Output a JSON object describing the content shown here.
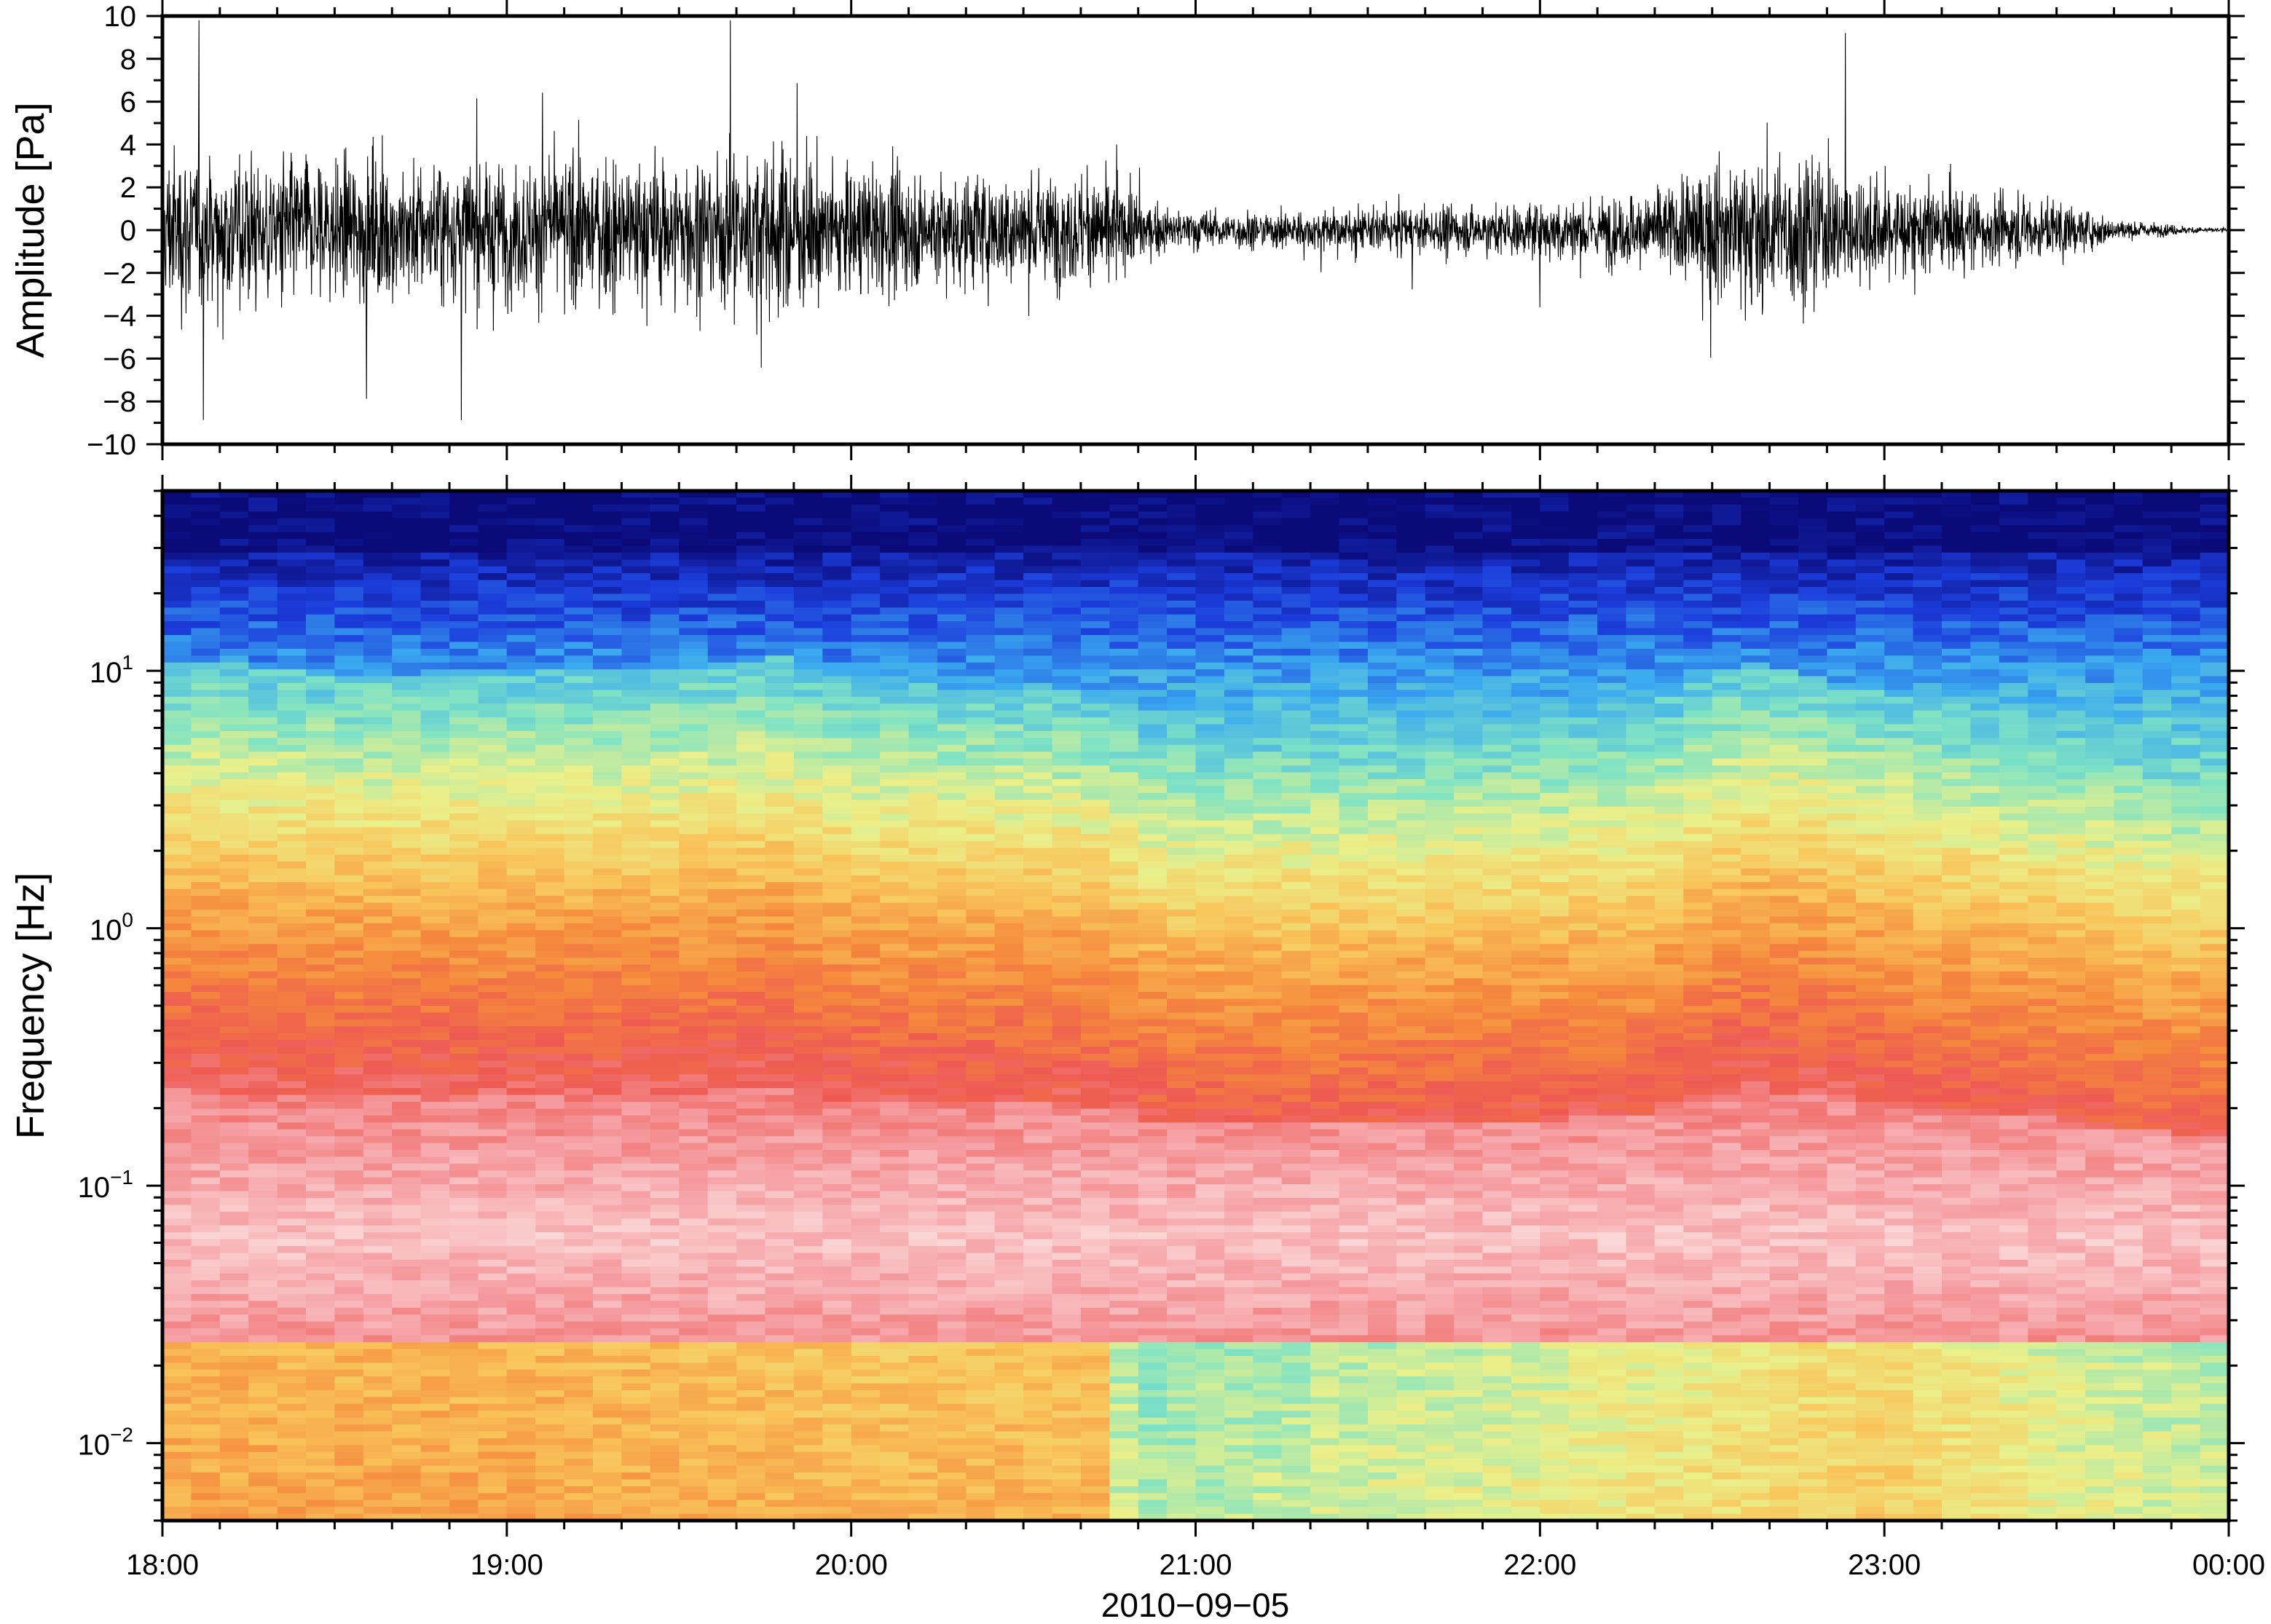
{
  "chart_data": [
    {
      "type": "line",
      "ylabel": "Amplitude [Pa]",
      "ylim": [
        -10,
        10
      ],
      "yticks": [
        10,
        8,
        6,
        4,
        2,
        0,
        -2,
        -4,
        -6,
        -8,
        -10
      ],
      "ytick_labels": [
        "10",
        "8",
        "6",
        "4",
        "2",
        "0",
        "−2",
        "−4",
        "−6",
        "−8",
        "−10"
      ],
      "x_range": [
        "18:00",
        "00:00"
      ],
      "envelope": {
        "x_hours": [
          0,
          0.5,
          1,
          1.5,
          1.8,
          2,
          2.5,
          2.75,
          2.9,
          3.2,
          3.5,
          3.8,
          4,
          4.3,
          4.6,
          4.8,
          5,
          5.3,
          5.5,
          5.7,
          5.9,
          6
        ],
        "amplitude": [
          3.5,
          3.0,
          3.0,
          3.2,
          3.6,
          2.6,
          2.4,
          2.2,
          0.9,
          0.8,
          0.9,
          1.0,
          1.2,
          1.6,
          3.4,
          3.0,
          2.2,
          1.6,
          1.2,
          0.4,
          0.15,
          0.1
        ]
      },
      "grid": false
    },
    {
      "type": "heatmap",
      "ylabel": "Frequency [Hz]",
      "yscale": "log",
      "ylim": [
        0.005,
        50
      ],
      "yticks": [
        0.01,
        0.1,
        1,
        10
      ],
      "ytick_labels": [
        {
          "base": "10",
          "exp": "−2"
        },
        {
          "base": "10",
          "exp": "−1"
        },
        {
          "base": "10",
          "exp": "0"
        },
        {
          "base": "10",
          "exp": "1"
        }
      ],
      "colormap": [
        "#0a0a78",
        "#1c3ddc",
        "#3aa9f0",
        "#7fe3c4",
        "#eaf08a",
        "#f9c45a",
        "#f5893c",
        "#ee5a52",
        "#f59a9e",
        "#fbd6d6"
      ],
      "profile_note_hours": [
        0,
        1,
        2,
        2.75,
        2.8,
        4,
        5,
        5.5,
        6
      ],
      "low_band_level": [
        0.58,
        0.58,
        0.55,
        0.55,
        0.35,
        0.42,
        0.5,
        0.42,
        0.38
      ],
      "grid": false
    }
  ],
  "x_axis": {
    "tick_labels": [
      "18:00",
      "19:00",
      "20:00",
      "21:00",
      "22:00",
      "23:00",
      "00:00"
    ],
    "date_label": "2010−09−05"
  }
}
